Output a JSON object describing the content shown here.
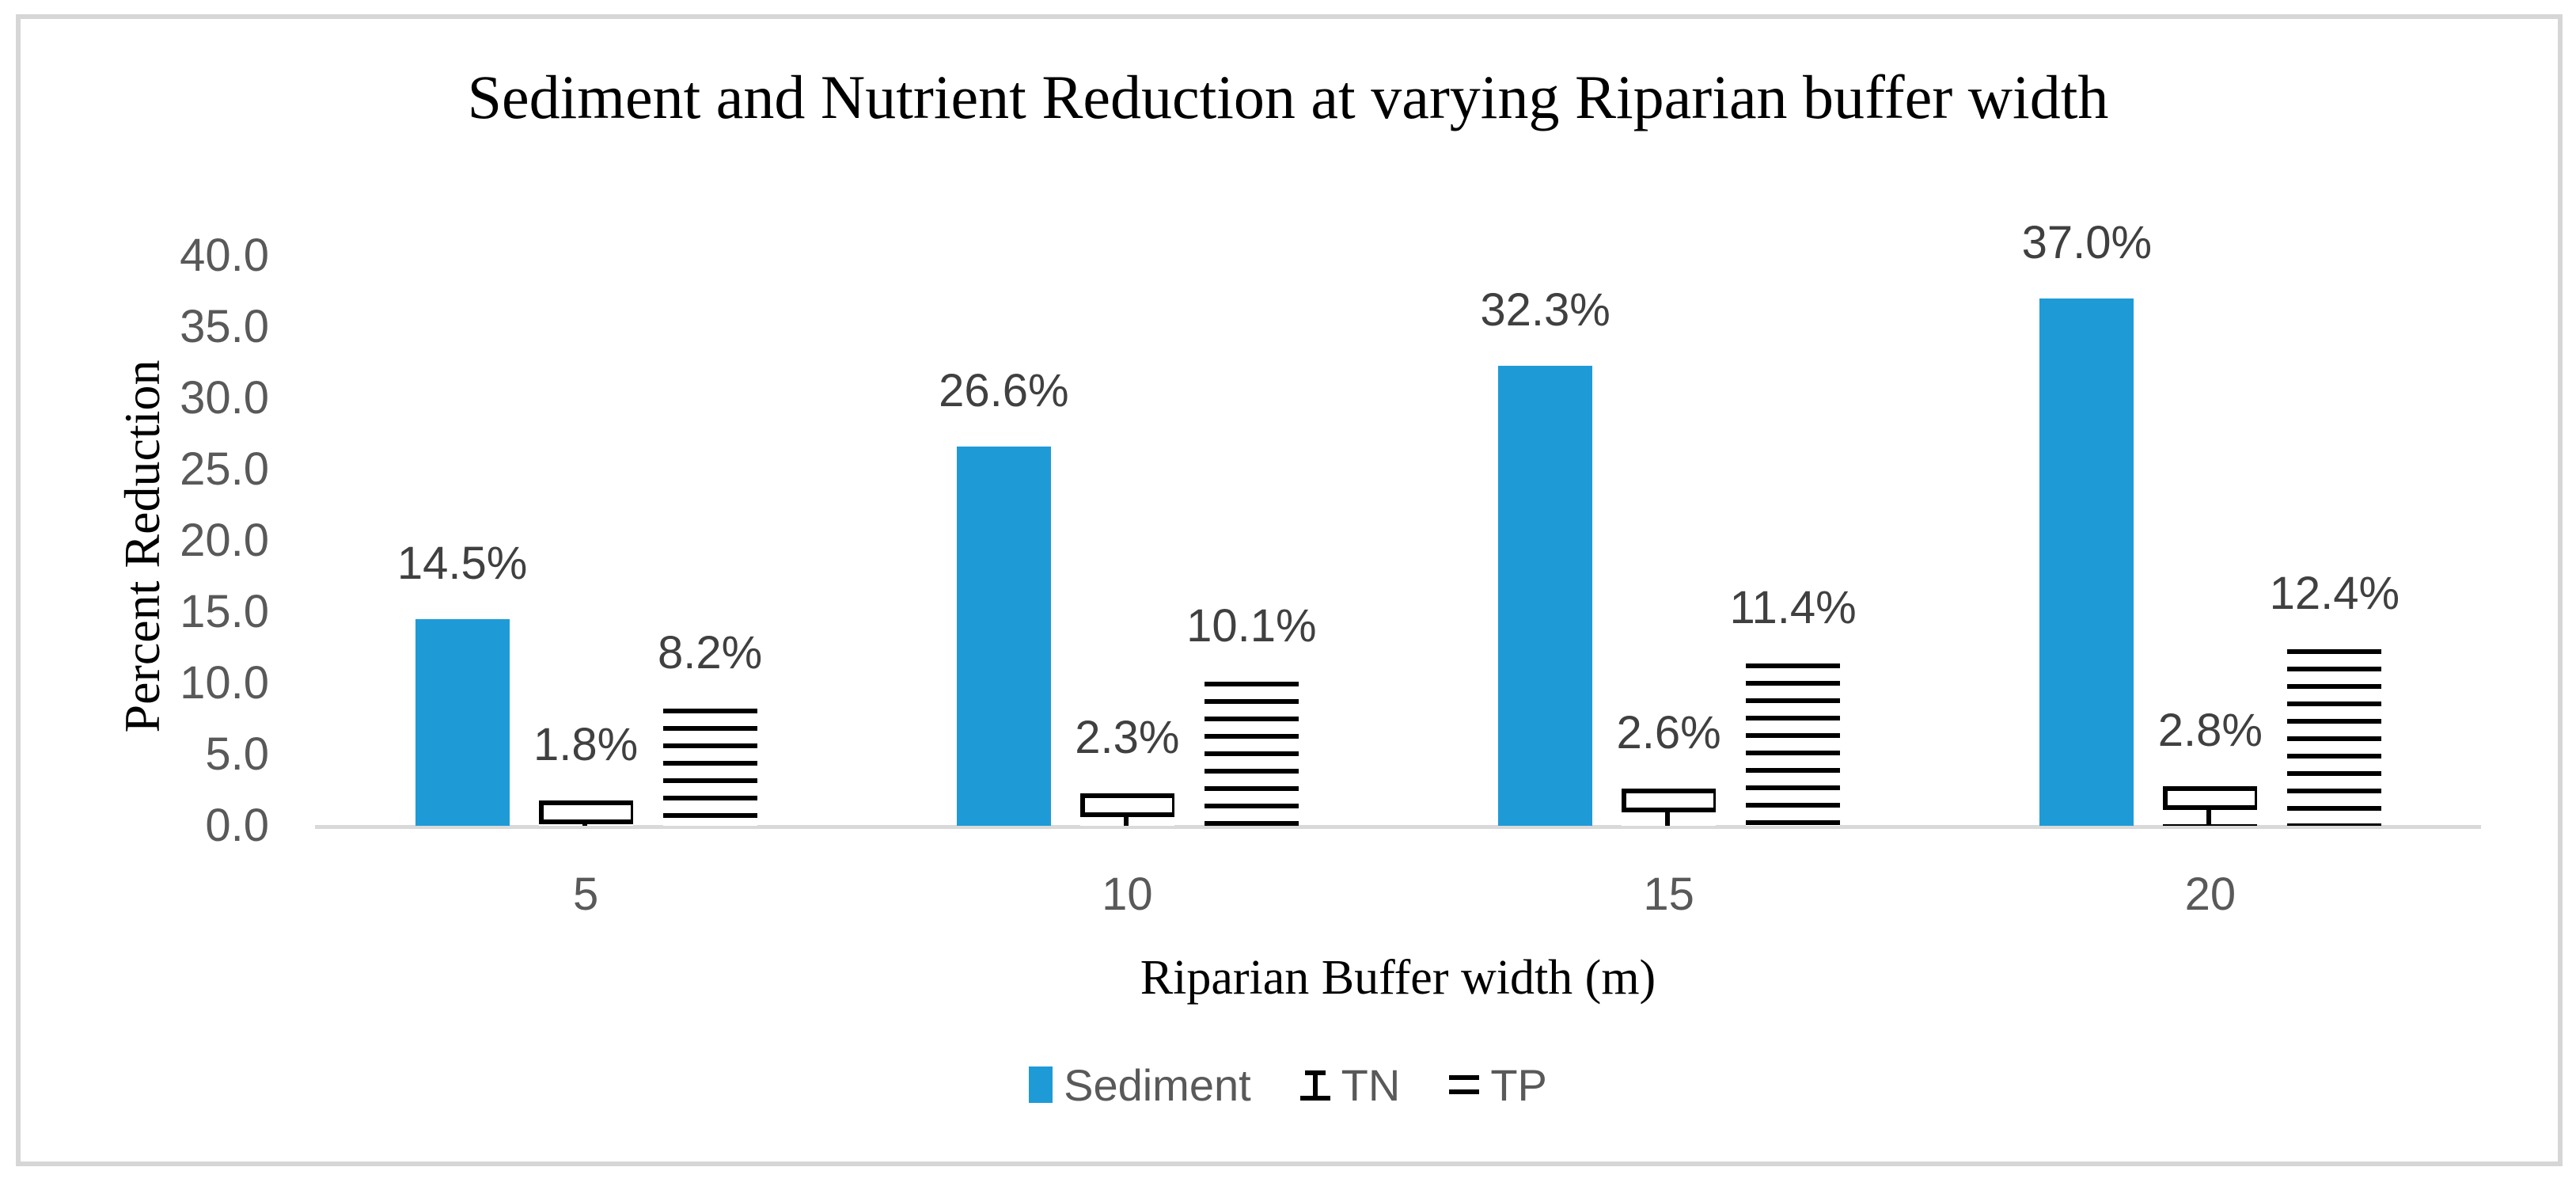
{
  "chart_data": {
    "type": "bar",
    "title": "Sediment and Nutrient Reduction at varying Riparian buffer width",
    "xlabel": "Riparian Buffer width (m)",
    "ylabel": "Percent Reduction",
    "categories": [
      "5",
      "10",
      "15",
      "20"
    ],
    "series": [
      {
        "name": "Sediment",
        "pattern": "solid",
        "values": [
          14.5,
          26.6,
          32.3,
          37.0
        ],
        "data_labels": [
          "14.5%",
          "26.6%",
          "32.3%",
          "37.0%"
        ]
      },
      {
        "name": "TN",
        "pattern": "brick",
        "values": [
          1.8,
          2.3,
          2.6,
          2.8
        ],
        "data_labels": [
          "1.8%",
          "2.3%",
          "2.6%",
          "2.8%"
        ]
      },
      {
        "name": "TP",
        "pattern": "horizontal-lines",
        "values": [
          8.2,
          10.1,
          11.4,
          12.4
        ],
        "data_labels": [
          "8.2%",
          "10.1%",
          "11.4%",
          "12.4%"
        ]
      }
    ],
    "ylim": [
      0,
      40
    ],
    "ytick_step": 5,
    "ytick_labels": [
      "40.0",
      "35.0",
      "30.0",
      "25.0",
      "20.0",
      "15.0",
      "10.0",
      "5.0",
      "0.0"
    ],
    "grid": false,
    "legend_position": "bottom"
  },
  "colors": {
    "sediment": "#1E9BD7",
    "pattern_ink": "#000000",
    "axis_line": "#D9D9D9",
    "frame_border": "#D6D6D6",
    "tick_text": "#595959",
    "data_label_text": "#404040",
    "title_text": "#000000",
    "background": "#FFFFFF"
  }
}
